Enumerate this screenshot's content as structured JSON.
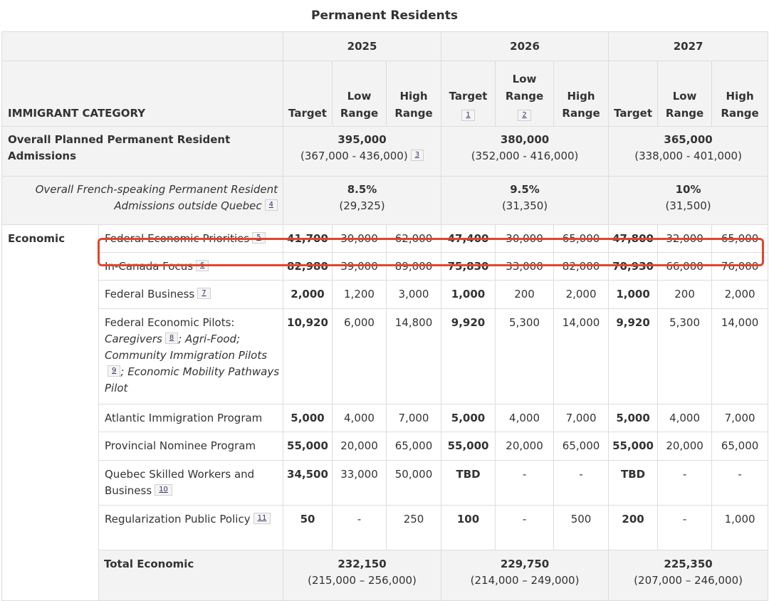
{
  "title": "Permanent Residents",
  "years": [
    "2025",
    "2026",
    "2027"
  ],
  "header": {
    "category": "IMMIGRANT CATEGORY",
    "target": "Target",
    "low": "Low Range",
    "high": "High Range"
  },
  "footnotes": {
    "n1": "1",
    "n2": "2",
    "n3": "3",
    "n4": "4",
    "n5": "5",
    "n6": "6",
    "n7": "7",
    "n8": "8",
    "n9": "9",
    "n10": "10",
    "n11": "11"
  },
  "overall": {
    "label": "Overall Planned Permanent Resident Admissions",
    "y2025": {
      "value": "395,000",
      "range": "(367,000 - 436,000)"
    },
    "y2026": {
      "value": "380,000",
      "range": "(352,000 - 416,000)"
    },
    "y2027": {
      "value": "365,000",
      "range": "(338,000 - 401,000)"
    }
  },
  "french": {
    "label": "Overall French-speaking Permanent Resident Admissions outside Quebec",
    "y2025": {
      "value": "8.5%",
      "count": "(29,325)"
    },
    "y2026": {
      "value": "9.5%",
      "count": "(31,350)"
    },
    "y2027": {
      "value": "10%",
      "count": "(31,500)"
    }
  },
  "economic_label": "Economic",
  "rows": [
    {
      "program": "Federal Economic Priorities",
      "values": [
        "41,700",
        "30,000",
        "62,000",
        "47,400",
        "30,000",
        "65,000",
        "47,800",
        "32,000",
        "65,000"
      ]
    },
    {
      "program": "In-Canada Focus",
      "values": [
        "82,980",
        "39,000",
        "89,000",
        "75,830",
        "33,000",
        "82,000",
        "70,930",
        "66,000",
        "76,000"
      ]
    },
    {
      "program": "Federal Business",
      "values": [
        "2,000",
        "1,200",
        "3,000",
        "1,000",
        "200",
        "2,000",
        "1,000",
        "200",
        "2,000"
      ]
    },
    {
      "program": "Federal Economic Pilots:",
      "values": [
        "10,920",
        "6,000",
        "14,800",
        "9,920",
        "5,300",
        "14,000",
        "9,920",
        "5,300",
        "14,000"
      ]
    },
    {
      "program": "Atlantic Immigration Program",
      "values": [
        "5,000",
        "4,000",
        "7,000",
        "5,000",
        "4,000",
        "7,000",
        "5,000",
        "4,000",
        "7,000"
      ]
    },
    {
      "program": "Provincial Nominee Program",
      "values": [
        "55,000",
        "20,000",
        "65,000",
        "55,000",
        "20,000",
        "65,000",
        "55,000",
        "20,000",
        "65,000"
      ]
    },
    {
      "program": "Quebec Skilled Workers and Business",
      "values": [
        "34,500",
        "33,000",
        "50,000",
        "TBD",
        "-",
        "-",
        "TBD",
        "-",
        "-"
      ]
    },
    {
      "program": "Regularization Public Policy",
      "values": [
        "50",
        "-",
        "250",
        "100",
        "-",
        "500",
        "200",
        "-",
        "1,000"
      ]
    }
  ],
  "pilots_detail": {
    "caregivers": "Caregivers",
    "agrifood": "; Agri-Food; Community Immigration Pilots",
    "mobility": "; Economic Mobility Pathways Pilot"
  },
  "total": {
    "label": "Total Economic",
    "y2025": {
      "value": "232,150",
      "range": "(215,000 – 256,000)"
    },
    "y2026": {
      "value": "229,750",
      "range": "(214,000 – 249,000)"
    },
    "y2027": {
      "value": "225,350",
      "range": "(207,000 – 246,000)"
    }
  },
  "highlight_color": "#e0452d"
}
